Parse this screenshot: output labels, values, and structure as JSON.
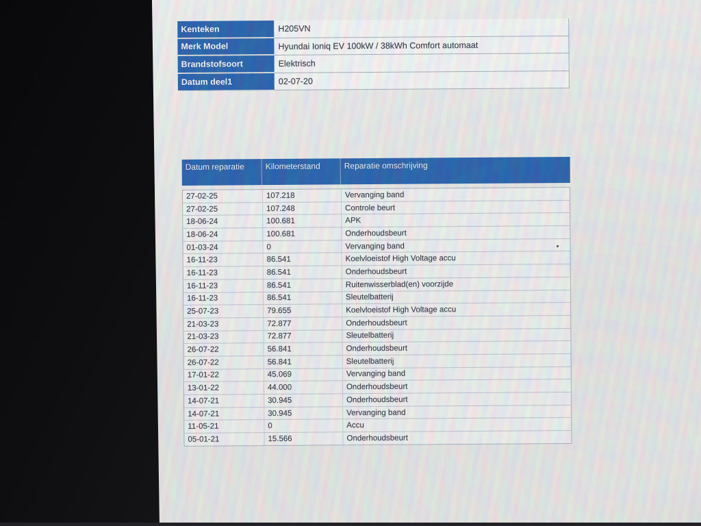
{
  "colors": {
    "header_blue": "#1150a2",
    "screen_background": "#e8e6e4",
    "bezel_black": "#0b0b0d",
    "grid_border": "#9fa6b2",
    "text": "#181b28"
  },
  "vehicle_info": {
    "rows": [
      {
        "label": "Kenteken",
        "value": "H205VN"
      },
      {
        "label": "Merk Model",
        "value": "Hyundai Ioniq EV 100kW / 38kWh Comfort automaat"
      },
      {
        "label": "Brandstofsoort",
        "value": "Elektrisch"
      },
      {
        "label": "Datum deel1",
        "value": "02-07-20"
      }
    ]
  },
  "repair_table": {
    "headers": [
      "Datum reparatie",
      "Kilometerstand",
      "Reparatie omschrijving"
    ],
    "rows": [
      {
        "date": "27-02-25",
        "km": "107.218",
        "desc": "Vervanging band"
      },
      {
        "date": "27-02-25",
        "km": "107.248",
        "desc": "Controle beurt"
      },
      {
        "date": "18-06-24",
        "km": "100.681",
        "desc": "APK"
      },
      {
        "date": "18-06-24",
        "km": "100.681",
        "desc": "Onderhoudsbeurt"
      },
      {
        "date": "01-03-24",
        "km": "0",
        "desc": "Vervanging band"
      },
      {
        "date": "16-11-23",
        "km": "86.541",
        "desc": "Koelvloeistof High Voltage accu"
      },
      {
        "date": "16-11-23",
        "km": "86.541",
        "desc": "Onderhoudsbeurt"
      },
      {
        "date": "16-11-23",
        "km": "86.541",
        "desc": "Ruitenwisserblad(en) voorzijde"
      },
      {
        "date": "16-11-23",
        "km": "86.541",
        "desc": "Sleutelbatterij"
      },
      {
        "date": "25-07-23",
        "km": "79.655",
        "desc": "Koelvloeistof High Voltage accu"
      },
      {
        "date": "21-03-23",
        "km": "72.877",
        "desc": "Onderhoudsbeurt"
      },
      {
        "date": "21-03-23",
        "km": "72.877",
        "desc": "Sleutelbatterij"
      },
      {
        "date": "26-07-22",
        "km": "56.841",
        "desc": "Onderhoudsbeurt"
      },
      {
        "date": "26-07-22",
        "km": "56.841",
        "desc": "Sleutelbatterij"
      },
      {
        "date": "17-01-22",
        "km": "45.069",
        "desc": "Vervanging band"
      },
      {
        "date": "13-01-22",
        "km": "44.000",
        "desc": "Onderhoudsbeurt"
      },
      {
        "date": "14-07-21",
        "km": "30.945",
        "desc": "Onderhoudsbeurt"
      },
      {
        "date": "14-07-21",
        "km": "30.945",
        "desc": "Vervanging band"
      },
      {
        "date": "11-05-21",
        "km": "0",
        "desc": "Accu"
      },
      {
        "date": "05-01-21",
        "km": "15.566",
        "desc": "Onderhoudsbeurt"
      }
    ]
  }
}
